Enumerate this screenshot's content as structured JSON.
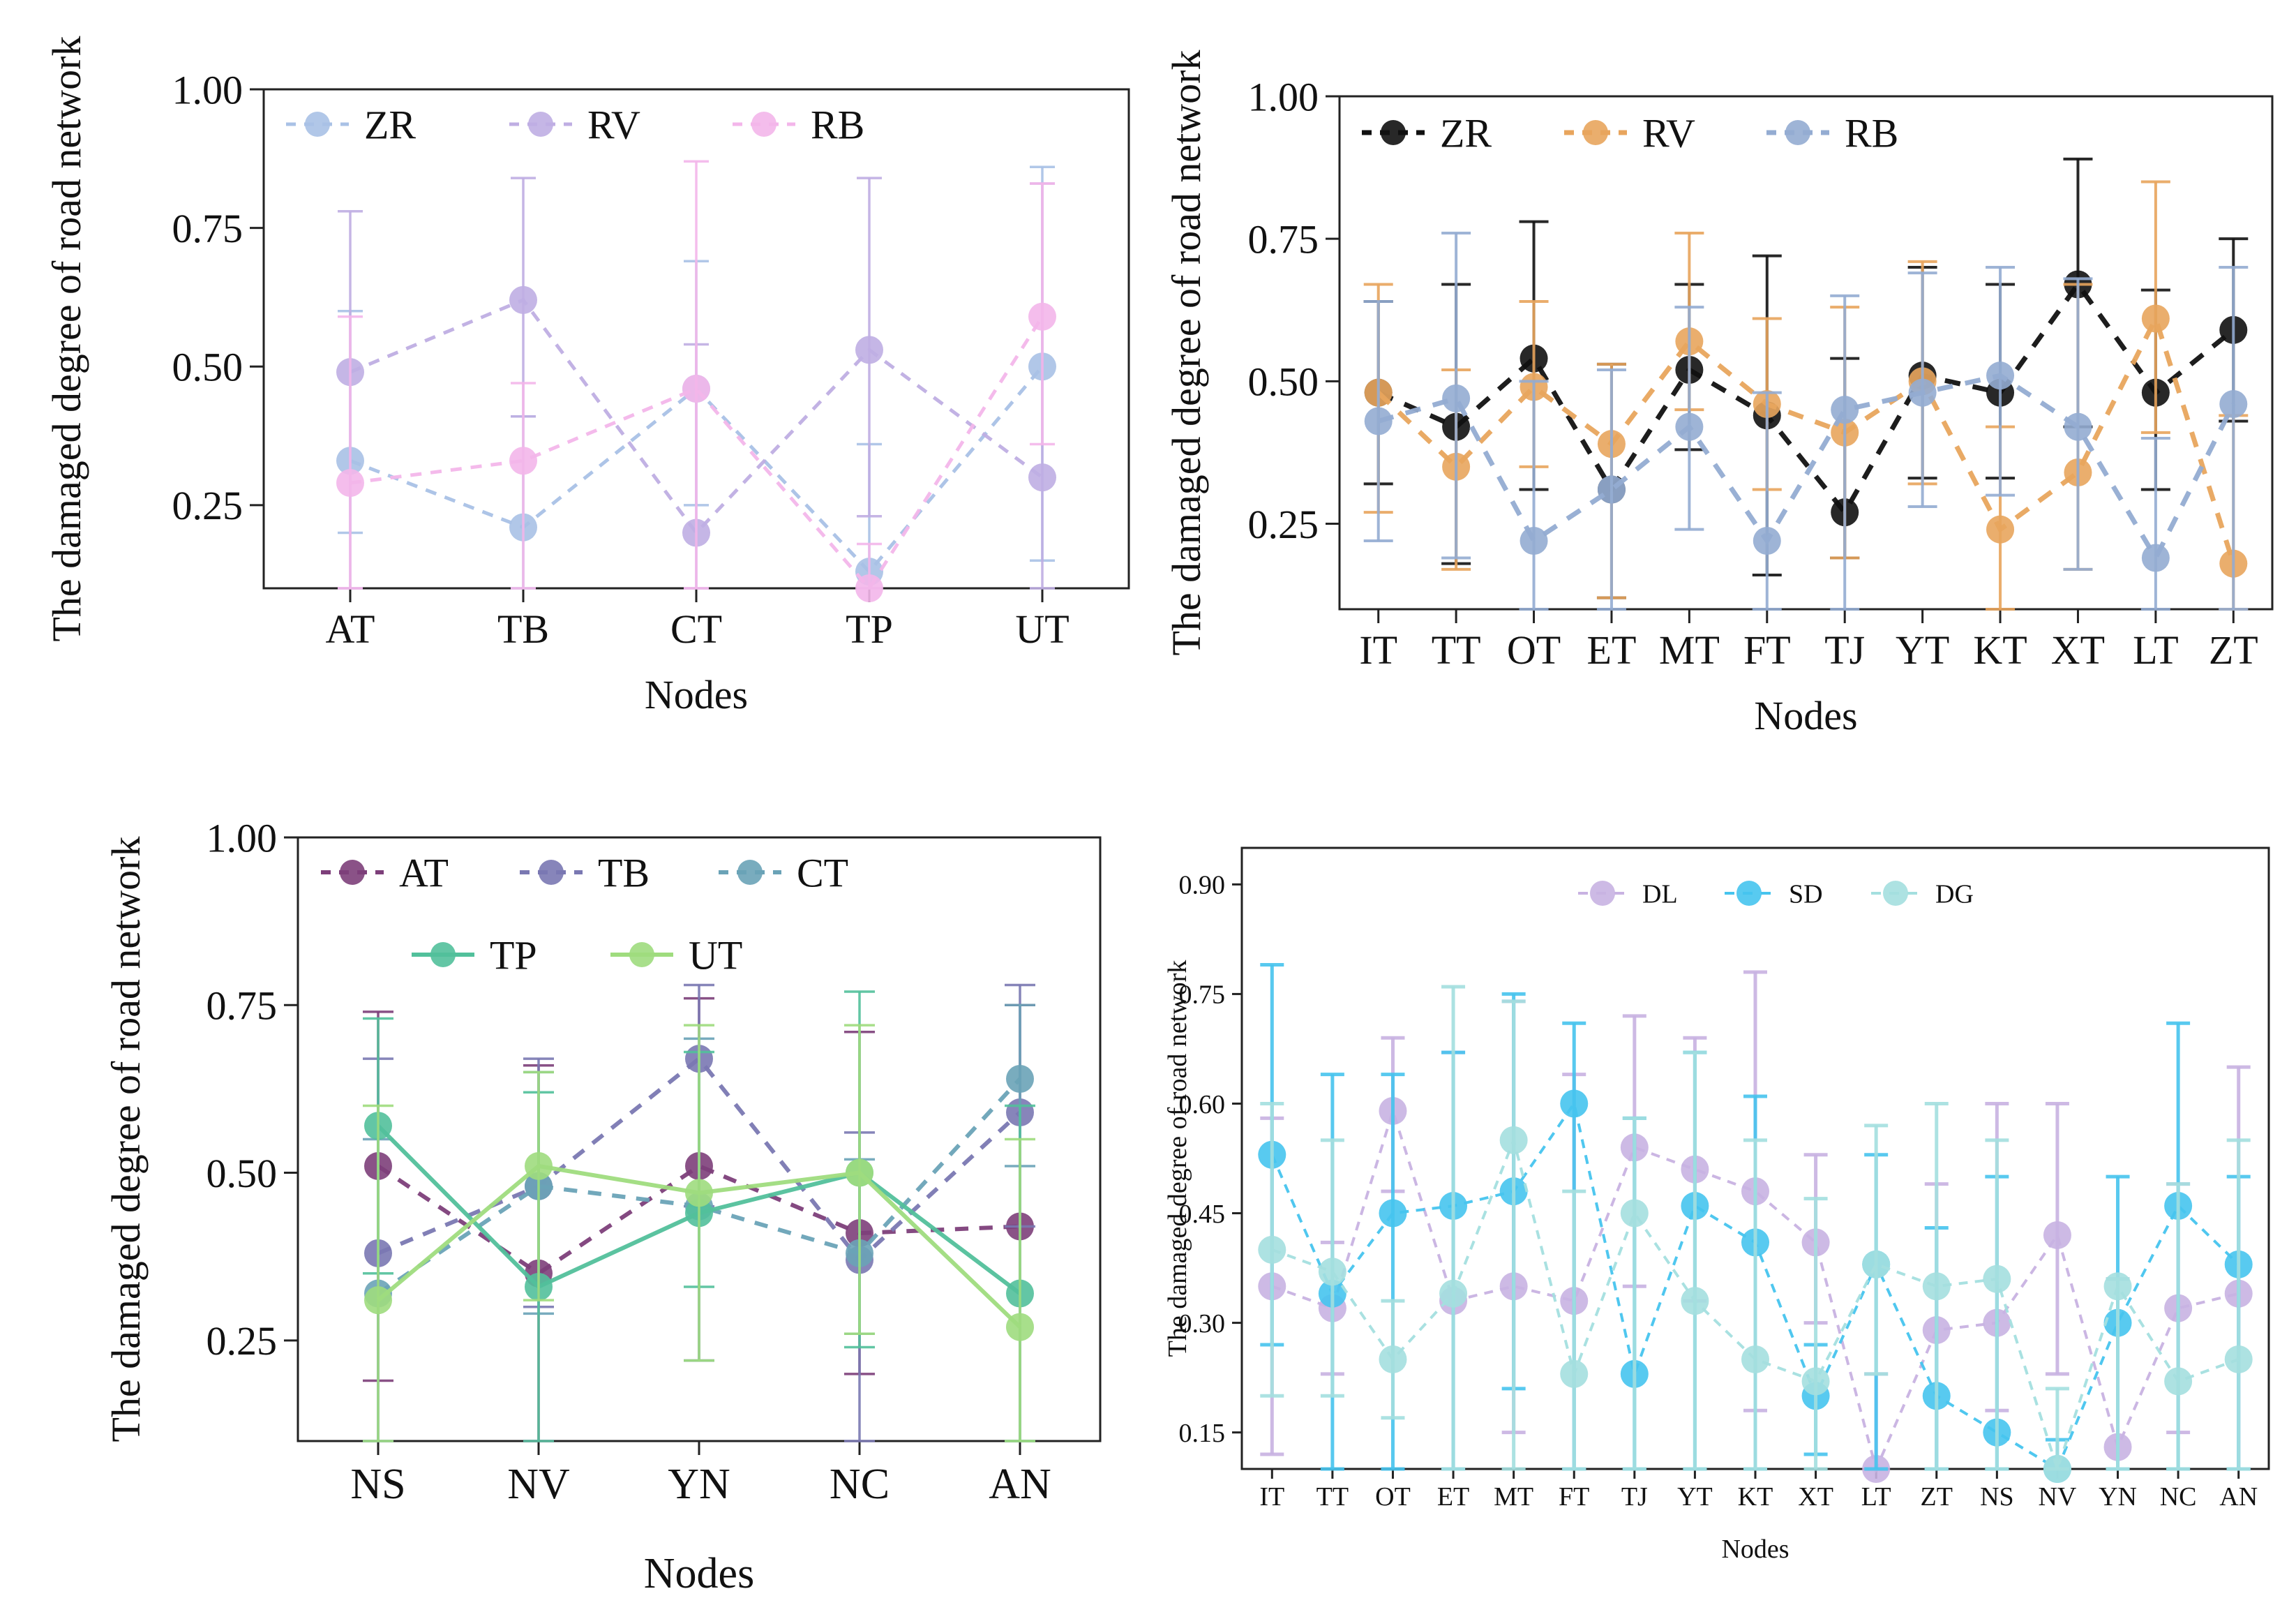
{
  "chart_data": [
    {
      "type": "line",
      "id": "a",
      "title": "",
      "xlabel": "Nodes",
      "ylabel": "The damaged degree of road network",
      "ylim": [
        0.1,
        1.0
      ],
      "yticks": [
        0.25,
        0.5,
        0.75,
        1.0
      ],
      "ytick_labels": [
        "0.25",
        "0.50",
        "0.75",
        "1.00"
      ],
      "categories": [
        "AT",
        "TB",
        "CT",
        "TP",
        "UT"
      ],
      "legend_position": "top-left",
      "series": [
        {
          "name": "ZR",
          "color": "#a9c1e6",
          "values": [
            0.33,
            0.21,
            0.46,
            0.13,
            0.5
          ],
          "err_low": [
            0.2,
            0.1,
            0.25,
            0.1,
            0.15
          ],
          "err_high": [
            0.6,
            0.41,
            0.69,
            0.36,
            0.86
          ]
        },
        {
          "name": "RV",
          "color": "#bfaee3",
          "values": [
            0.49,
            0.62,
            0.2,
            0.53,
            0.3
          ],
          "err_low": [
            0.1,
            0.41,
            0.1,
            0.23,
            0.1
          ],
          "err_high": [
            0.78,
            0.84,
            0.54,
            0.84,
            0.83
          ]
        },
        {
          "name": "RB",
          "color": "#f3b6ea",
          "values": [
            0.29,
            0.33,
            0.46,
            0.1,
            0.59
          ],
          "err_low": [
            0.1,
            0.1,
            0.1,
            0.1,
            0.36
          ],
          "err_high": [
            0.59,
            0.47,
            0.87,
            0.18,
            0.83
          ]
        }
      ]
    },
    {
      "type": "line",
      "id": "b",
      "title": "",
      "xlabel": "Nodes",
      "ylabel": "The damaged degree of road network",
      "ylim": [
        0.1,
        1.0
      ],
      "yticks": [
        0.25,
        0.5,
        0.75,
        1.0
      ],
      "ytick_labels": [
        "0.25",
        "0.50",
        "0.75",
        "1.00"
      ],
      "categories": [
        "IT",
        "TT",
        "OT",
        "ET",
        "MT",
        "FT",
        "TJ",
        "YT",
        "KT",
        "XT",
        "LT",
        "ZT"
      ],
      "legend_position": "top-left",
      "series": [
        {
          "name": "ZR",
          "color": "#111111",
          "values": [
            0.48,
            0.42,
            0.54,
            0.31,
            0.52,
            0.44,
            0.27,
            0.51,
            0.48,
            0.67,
            0.48,
            0.59
          ],
          "err_low": [
            0.32,
            0.18,
            0.31,
            0.12,
            0.38,
            0.16,
            0.19,
            0.33,
            0.33,
            0.42,
            0.31,
            0.43
          ],
          "err_high": [
            0.64,
            0.67,
            0.78,
            0.53,
            0.67,
            0.72,
            0.54,
            0.7,
            0.67,
            0.89,
            0.66,
            0.75
          ]
        },
        {
          "name": "RV",
          "color": "#e8a55d",
          "values": [
            0.48,
            0.35,
            0.49,
            0.39,
            0.57,
            0.46,
            0.41,
            0.5,
            0.24,
            0.34,
            0.61,
            0.18
          ],
          "err_low": [
            0.27,
            0.17,
            0.35,
            0.12,
            0.45,
            0.31,
            0.19,
            0.32,
            0.1,
            0.17,
            0.41,
            0.1
          ],
          "err_high": [
            0.67,
            0.52,
            0.64,
            0.53,
            0.76,
            0.61,
            0.63,
            0.71,
            0.42,
            0.67,
            0.85,
            0.44
          ]
        },
        {
          "name": "RB",
          "color": "#94acd2",
          "values": [
            0.43,
            0.47,
            0.22,
            0.31,
            0.42,
            0.22,
            0.45,
            0.48,
            0.51,
            0.42,
            0.19,
            0.46
          ],
          "err_low": [
            0.22,
            0.19,
            0.1,
            0.1,
            0.24,
            0.1,
            0.1,
            0.28,
            0.3,
            0.17,
            0.1,
            0.1
          ],
          "err_high": [
            0.64,
            0.76,
            0.5,
            0.52,
            0.63,
            0.48,
            0.65,
            0.69,
            0.7,
            0.68,
            0.4,
            0.7
          ]
        }
      ]
    },
    {
      "type": "line",
      "id": "c",
      "title": "",
      "xlabel": "Nodes",
      "ylabel": "The damaged degree of road network",
      "ylim": [
        0.1,
        1.0
      ],
      "yticks": [
        0.25,
        0.5,
        0.75,
        1.0
      ],
      "ytick_labels": [
        "0.25",
        "0.50",
        "0.75",
        "1.00"
      ],
      "categories": [
        "NS",
        "NV",
        "YN",
        "NC",
        "AN"
      ],
      "legend_position": "top-left",
      "series": [
        {
          "name": "AT",
          "color": "#7d3f7a",
          "dashed": true,
          "values": [
            0.51,
            0.35,
            0.51,
            0.41,
            0.42
          ],
          "err_low": [
            0.19,
            0.1,
            0.22,
            0.2,
            0.1
          ],
          "err_high": [
            0.74,
            0.66,
            0.76,
            0.71,
            0.75
          ]
        },
        {
          "name": "TB",
          "color": "#7a78b2",
          "dashed": true,
          "values": [
            0.38,
            0.48,
            0.67,
            0.37,
            0.59
          ],
          "err_low": [
            0.1,
            0.3,
            0.45,
            0.1,
            0.42
          ],
          "err_high": [
            0.67,
            0.67,
            0.78,
            0.56,
            0.78
          ]
        },
        {
          "name": "CT",
          "color": "#6aa3b7",
          "dashed": true,
          "values": [
            0.32,
            0.48,
            0.45,
            0.38,
            0.64
          ],
          "err_low": [
            0.1,
            0.29,
            0.22,
            0.26,
            0.51
          ],
          "err_high": [
            0.55,
            0.65,
            0.7,
            0.52,
            0.75
          ]
        },
        {
          "name": "TP",
          "color": "#52c09b",
          "dashed": false,
          "values": [
            0.57,
            0.33,
            0.44,
            0.5,
            0.32
          ],
          "err_low": [
            0.35,
            0.1,
            0.33,
            0.24,
            0.1
          ],
          "err_high": [
            0.73,
            0.62,
            0.68,
            0.77,
            0.6
          ]
        },
        {
          "name": "UT",
          "color": "#9fdc7e",
          "dashed": false,
          "values": [
            0.31,
            0.51,
            0.47,
            0.5,
            0.27
          ],
          "err_low": [
            0.1,
            0.31,
            0.22,
            0.26,
            0.1
          ],
          "err_high": [
            0.6,
            0.65,
            0.72,
            0.72,
            0.55
          ]
        }
      ]
    },
    {
      "type": "line",
      "id": "d",
      "title": "",
      "xlabel": "Nodes",
      "ylabel": "The damaged degree of road network",
      "ylim": [
        0.1,
        0.95
      ],
      "yticks": [
        0.15,
        0.3,
        0.45,
        0.6,
        0.75,
        0.9
      ],
      "ytick_labels": [
        "0.15",
        "0.30",
        "0.45",
        "0.60",
        "0.75",
        "0.90"
      ],
      "categories": [
        "IT",
        "TT",
        "OT",
        "ET",
        "MT",
        "FT",
        "TJ",
        "YT",
        "KT",
        "XT",
        "LT",
        "ZT",
        "NS",
        "NV",
        "YN",
        "NC",
        "AN"
      ],
      "legend_position": "top-center",
      "series": [
        {
          "name": "DL",
          "color": "#c8b2e2",
          "values": [
            0.35,
            0.32,
            0.59,
            0.33,
            0.35,
            0.33,
            0.54,
            0.51,
            0.48,
            0.41,
            0.1,
            0.29,
            0.3,
            0.42,
            0.13,
            0.32,
            0.34
          ],
          "err_low": [
            0.12,
            0.23,
            0.48,
            0.1,
            0.15,
            0.1,
            0.35,
            0.33,
            0.18,
            0.3,
            0.1,
            0.1,
            0.18,
            0.23,
            0.1,
            0.15,
            0.1
          ],
          "err_high": [
            0.58,
            0.41,
            0.69,
            0.67,
            0.74,
            0.64,
            0.72,
            0.69,
            0.78,
            0.53,
            0.23,
            0.49,
            0.6,
            0.6,
            0.36,
            0.49,
            0.65
          ]
        },
        {
          "name": "SD",
          "color": "#46c4ee",
          "values": [
            0.53,
            0.34,
            0.45,
            0.46,
            0.48,
            0.6,
            0.23,
            0.46,
            0.41,
            0.2,
            0.38,
            0.2,
            0.15,
            0.1,
            0.3,
            0.46,
            0.38
          ],
          "err_low": [
            0.27,
            0.1,
            0.1,
            0.1,
            0.21,
            0.1,
            0.1,
            0.1,
            0.1,
            0.12,
            0.1,
            0.1,
            0.1,
            0.1,
            0.1,
            0.1,
            0.1
          ],
          "err_high": [
            0.79,
            0.64,
            0.64,
            0.67,
            0.75,
            0.71,
            0.58,
            0.67,
            0.61,
            0.27,
            0.53,
            0.43,
            0.5,
            0.14,
            0.5,
            0.71,
            0.5
          ]
        },
        {
          "name": "DG",
          "color": "#a4dfdf",
          "values": [
            0.4,
            0.37,
            0.25,
            0.34,
            0.55,
            0.23,
            0.45,
            0.33,
            0.25,
            0.22,
            0.38,
            0.35,
            0.36,
            0.1,
            0.35,
            0.22,
            0.25
          ],
          "err_low": [
            0.2,
            0.2,
            0.17,
            0.1,
            0.1,
            0.1,
            0.1,
            0.1,
            0.1,
            0.1,
            0.23,
            0.1,
            0.1,
            0.1,
            0.1,
            0.1,
            0.1
          ],
          "err_high": [
            0.6,
            0.55,
            0.33,
            0.76,
            0.74,
            0.48,
            0.58,
            0.67,
            0.55,
            0.47,
            0.57,
            0.6,
            0.55,
            0.21,
            0.36,
            0.49,
            0.55
          ]
        }
      ]
    }
  ]
}
